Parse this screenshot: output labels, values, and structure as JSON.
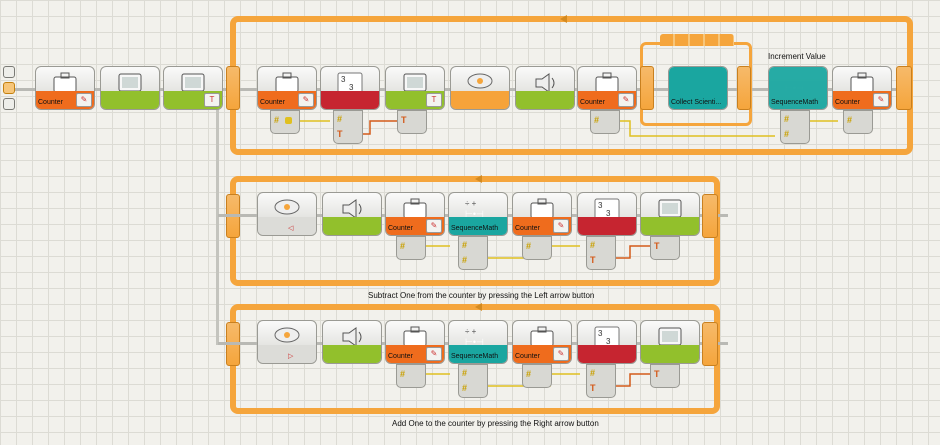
{
  "program": {
    "main_sequence": [
      {
        "name": "counter-variable-block",
        "label": "Counter",
        "icon": "briefcase-icon",
        "band": "orange"
      },
      {
        "name": "display-block-1",
        "label": "",
        "icon": "display-icon",
        "band": "green"
      },
      {
        "name": "display-block-2",
        "label": "",
        "icon": "display-icon",
        "band": "green"
      }
    ],
    "top_loop": {
      "blocks": [
        {
          "name": "counter-read-block",
          "label": "Counter",
          "icon": "briefcase-icon",
          "band": "orange"
        },
        {
          "name": "number-to-text-block",
          "label": "",
          "icon": "number-to-text-icon",
          "band": "red"
        },
        {
          "name": "display-block",
          "label": "",
          "icon": "display-icon",
          "band": "green"
        },
        {
          "name": "nxt-buttons-wait-block",
          "label": "",
          "icon": "nxt-button-icon",
          "band": "yellow"
        },
        {
          "name": "sound-block",
          "label": "",
          "icon": "speaker-icon",
          "band": "green"
        },
        {
          "name": "counter-block",
          "label": "Counter",
          "icon": "briefcase-icon",
          "band": "orange"
        },
        {
          "name": "collect-scientific-block",
          "label": "Collect Scienti...",
          "icon": "my-block-icon",
          "band": "teal"
        },
        {
          "name": "sequence-math-block",
          "label": "SequenceMath",
          "icon": "math-icon",
          "band": "teal"
        },
        {
          "name": "counter-write-block",
          "label": "Counter",
          "icon": "briefcase-icon",
          "band": "orange"
        }
      ],
      "comment": "Increment Value"
    },
    "middle_loop": {
      "blocks": [
        {
          "name": "left-button-wait-block",
          "label": "",
          "icon": "nxt-button-icon",
          "band": "yellow"
        },
        {
          "name": "sound-block",
          "label": "",
          "icon": "speaker-icon",
          "band": "green"
        },
        {
          "name": "counter-read-block",
          "label": "Counter",
          "icon": "briefcase-icon",
          "band": "orange"
        },
        {
          "name": "sequence-math-block",
          "label": "SequenceMath",
          "icon": "math-icon",
          "band": "teal"
        },
        {
          "name": "counter-write-block",
          "label": "Counter",
          "icon": "briefcase-icon",
          "band": "orange"
        },
        {
          "name": "number-to-text-block",
          "label": "",
          "icon": "number-to-text-icon",
          "band": "red"
        },
        {
          "name": "display-block",
          "label": "",
          "icon": "display-icon",
          "band": "green"
        }
      ],
      "caption": "Subtract One from the counter by pressing the Left arrow button"
    },
    "bottom_loop": {
      "blocks": [
        {
          "name": "right-button-wait-block",
          "label": "",
          "icon": "nxt-button-icon",
          "band": "yellow"
        },
        {
          "name": "sound-block",
          "label": "",
          "icon": "speaker-icon",
          "band": "green"
        },
        {
          "name": "counter-read-block",
          "label": "Counter",
          "icon": "briefcase-icon",
          "band": "orange"
        },
        {
          "name": "sequence-math-block",
          "label": "SequenceMath",
          "icon": "math-icon",
          "band": "teal"
        },
        {
          "name": "counter-write-block",
          "label": "Counter",
          "icon": "briefcase-icon",
          "band": "orange"
        },
        {
          "name": "number-to-text-block",
          "label": "",
          "icon": "number-to-text-icon",
          "band": "red"
        },
        {
          "name": "display-block",
          "label": "",
          "icon": "display-icon",
          "band": "green"
        }
      ],
      "caption": "Add One to the counter by pressing the Right arrow button"
    },
    "plug_glyphs": {
      "number": "#",
      "text": "T"
    },
    "colors": {
      "loop_orange": "#f5a53c",
      "variable_orange": "#ef6c1d",
      "action_green": "#92c02c",
      "math_teal": "#1aa6a0",
      "convert_red": "#c62530",
      "wire_yellow": "#e0c020",
      "wire_text": "#d35a1a",
      "grid_background": "#f2f1ec"
    }
  }
}
